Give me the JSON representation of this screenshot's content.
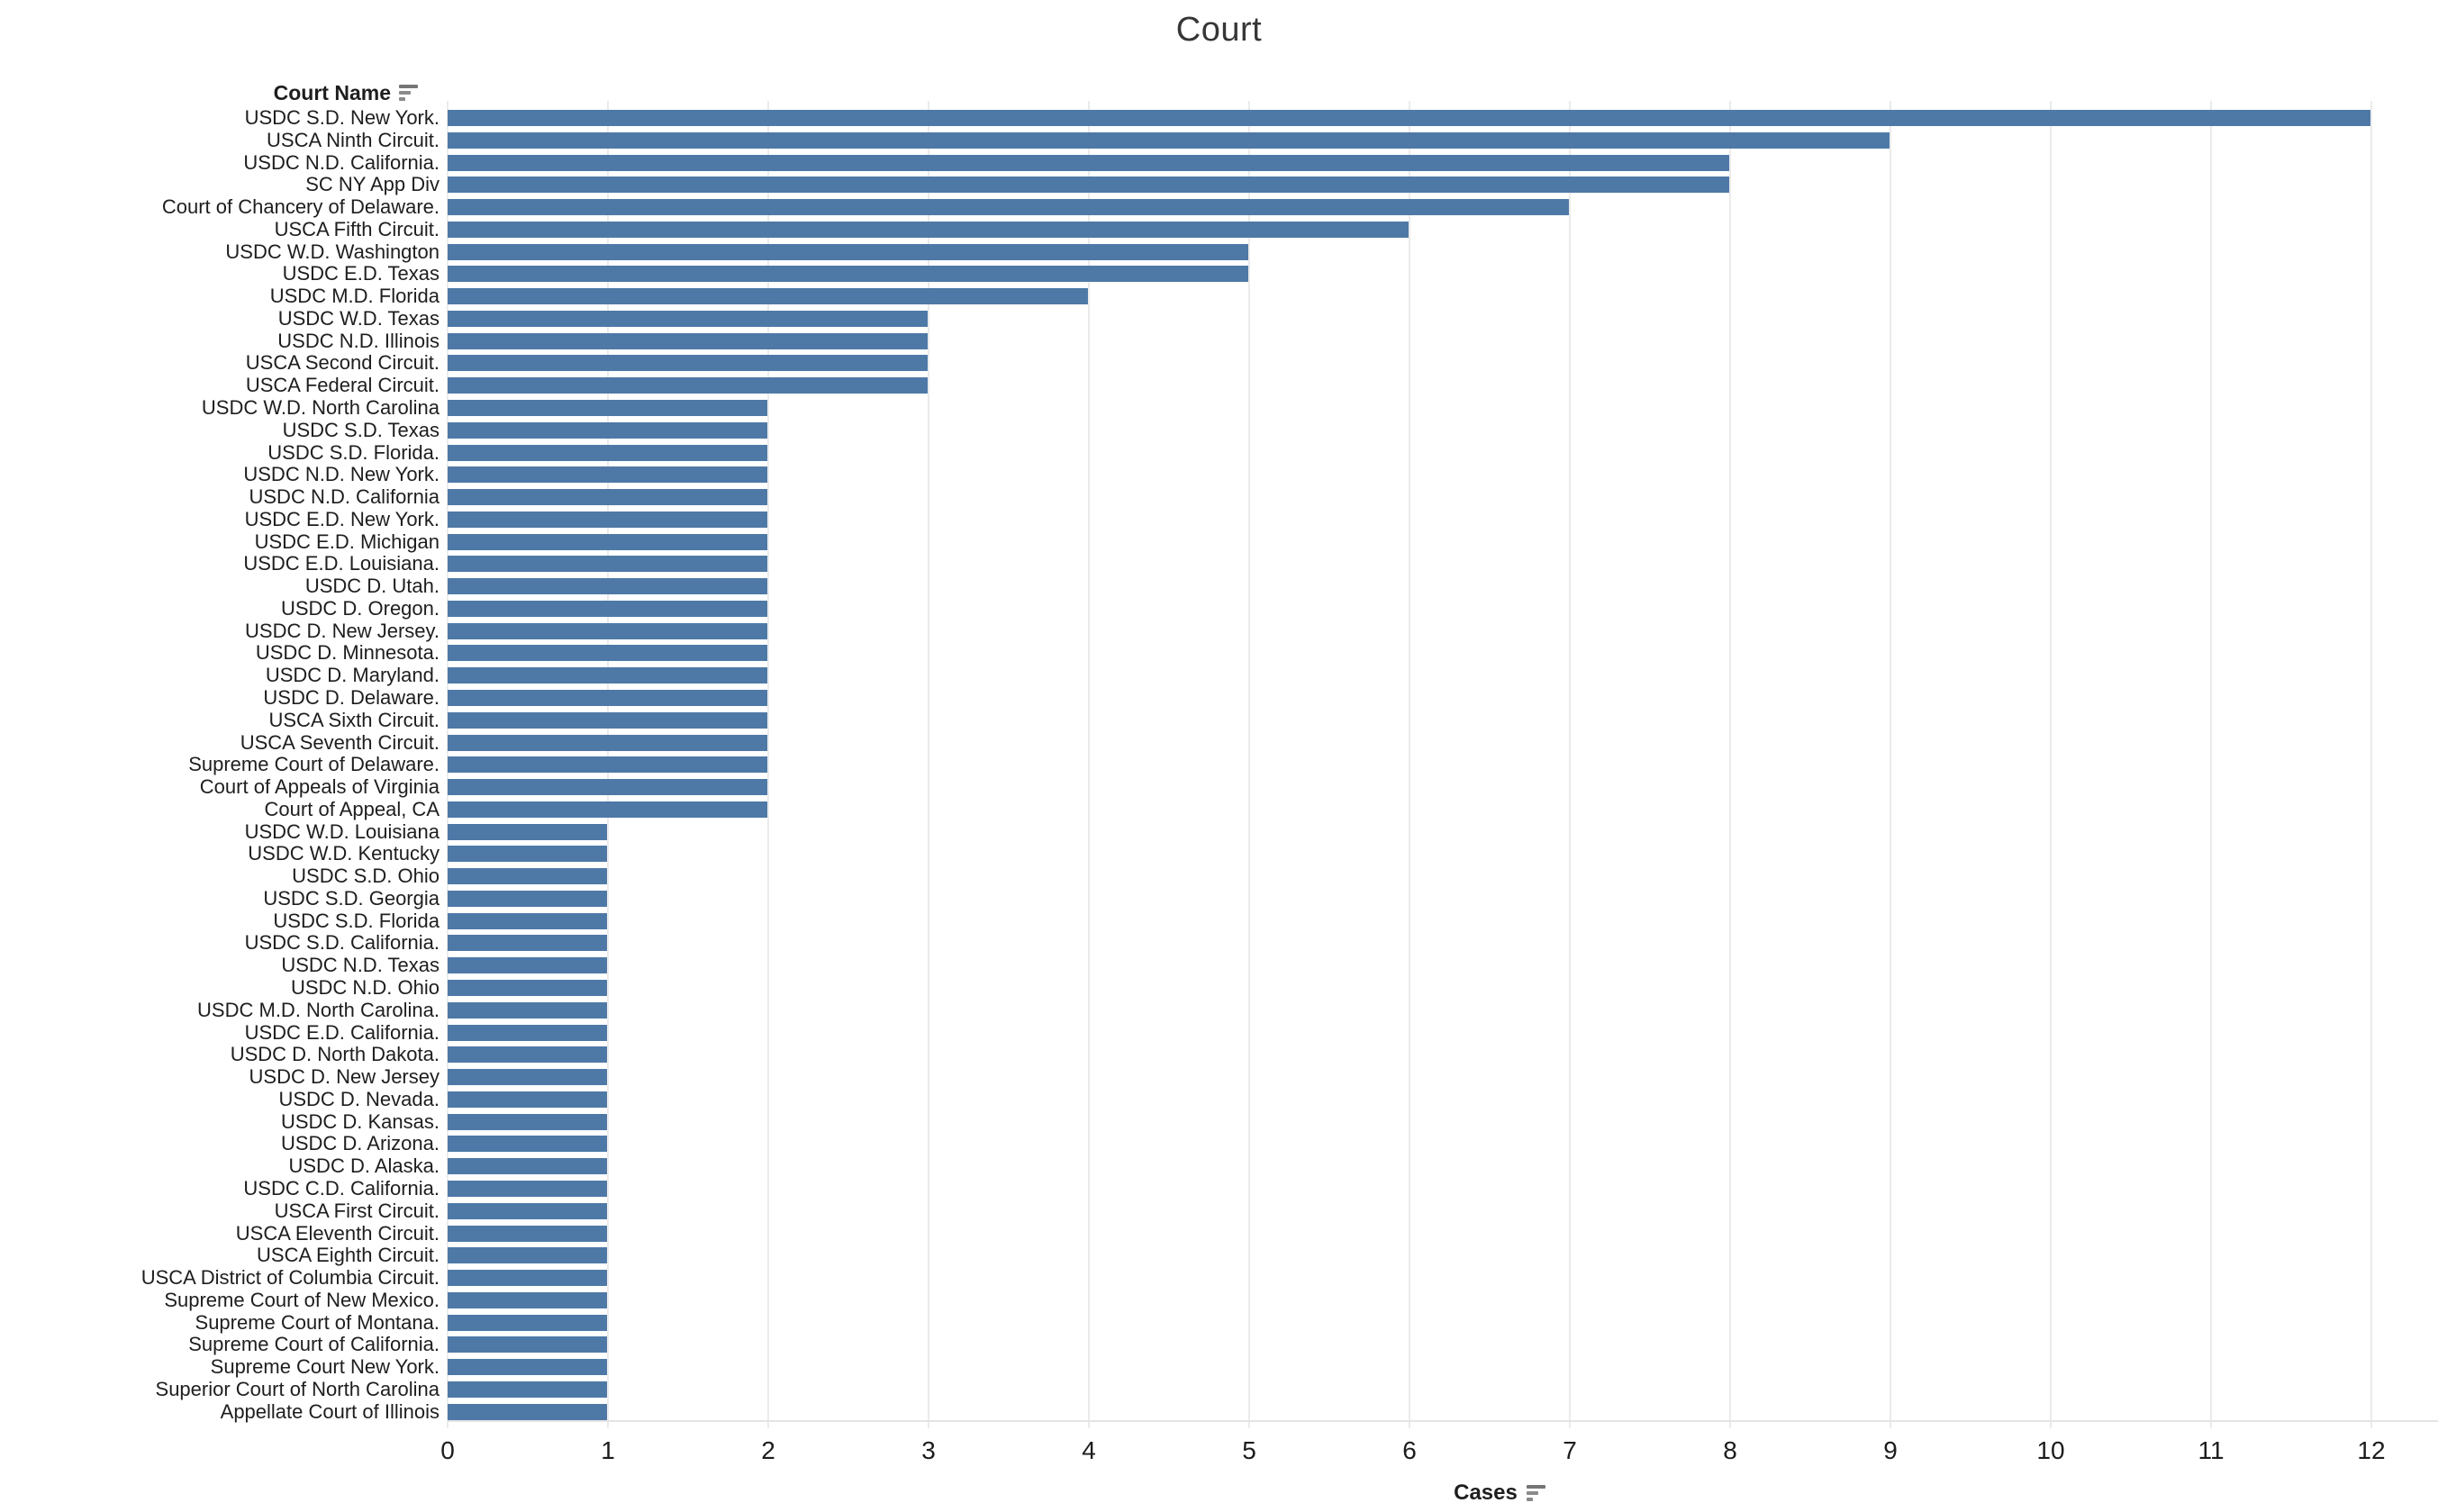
{
  "title": "Court",
  "row_header": {
    "label": "Court Name",
    "icon": "sort-descending-icon"
  },
  "x_axis": {
    "label": "Cases",
    "icon": "sort-descending-icon",
    "ticks": [
      "0",
      "1",
      "2",
      "3",
      "4",
      "5",
      "6",
      "7",
      "8",
      "9",
      "10",
      "11",
      "12"
    ]
  },
  "colors": {
    "bar": "#4e79a7",
    "gridline": "#ebebeb",
    "axis_line": "#e4e4e4",
    "text": "#1e1e1e",
    "title_text": "#363636",
    "sort_icon": "#757575"
  },
  "chart_data": {
    "type": "bar",
    "orientation": "horizontal",
    "title": "Court",
    "xlabel": "Cases",
    "ylabel": "Court Name",
    "xlim": [
      0,
      12.4
    ],
    "grid": true,
    "legend": false,
    "categories": [
      "USDC S.D. New York.",
      "USCA Ninth Circuit.",
      "USDC N.D. California.",
      "SC NY App Div",
      "Court of Chancery of Delaware.",
      "USCA Fifth Circuit.",
      "USDC W.D. Washington",
      "USDC E.D. Texas",
      "USDC M.D. Florida",
      "USDC W.D. Texas",
      "USDC N.D. Illinois",
      "USCA Second Circuit.",
      "USCA Federal Circuit.",
      "USDC W.D. North Carolina",
      "USDC S.D. Texas",
      "USDC S.D. Florida.",
      "USDC N.D. New York.",
      "USDC N.D. California",
      "USDC E.D. New York.",
      "USDC E.D. Michigan",
      "USDC E.D. Louisiana.",
      "USDC D. Utah.",
      "USDC D. Oregon.",
      "USDC D. New Jersey.",
      "USDC D. Minnesota.",
      "USDC D. Maryland.",
      "USDC D. Delaware.",
      "USCA Sixth Circuit.",
      "USCA Seventh Circuit.",
      "Supreme Court of Delaware.",
      "Court of Appeals of Virginia",
      "Court of Appeal, CA",
      "USDC W.D. Louisiana",
      "USDC W.D. Kentucky",
      "USDC S.D. Ohio",
      "USDC S.D. Georgia",
      "USDC S.D. Florida",
      "USDC S.D. California.",
      "USDC N.D. Texas",
      "USDC N.D. Ohio",
      "USDC M.D. North Carolina.",
      "USDC E.D. California.",
      "USDC D. North Dakota.",
      "USDC D. New Jersey",
      "USDC D. Nevada.",
      "USDC D. Kansas.",
      "USDC D. Arizona.",
      "USDC D. Alaska.",
      "USDC C.D. California.",
      "USCA First Circuit.",
      "USCA Eleventh Circuit.",
      "USCA Eighth Circuit.",
      "USCA District of Columbia Circuit.",
      "Supreme Court of New Mexico.",
      "Supreme Court of Montana.",
      "Supreme Court of California.",
      "Supreme Court New York.",
      "Superior Court of North Carolina",
      "Appellate Court of Illinois"
    ],
    "values": [
      12,
      9,
      8,
      8,
      7,
      6,
      5,
      5,
      4,
      3,
      3,
      3,
      3,
      2,
      2,
      2,
      2,
      2,
      2,
      2,
      2,
      2,
      2,
      2,
      2,
      2,
      2,
      2,
      2,
      2,
      2,
      2,
      1,
      1,
      1,
      1,
      1,
      1,
      1,
      1,
      1,
      1,
      1,
      1,
      1,
      1,
      1,
      1,
      1,
      1,
      1,
      1,
      1,
      1,
      1,
      1,
      1,
      1,
      1
    ]
  }
}
